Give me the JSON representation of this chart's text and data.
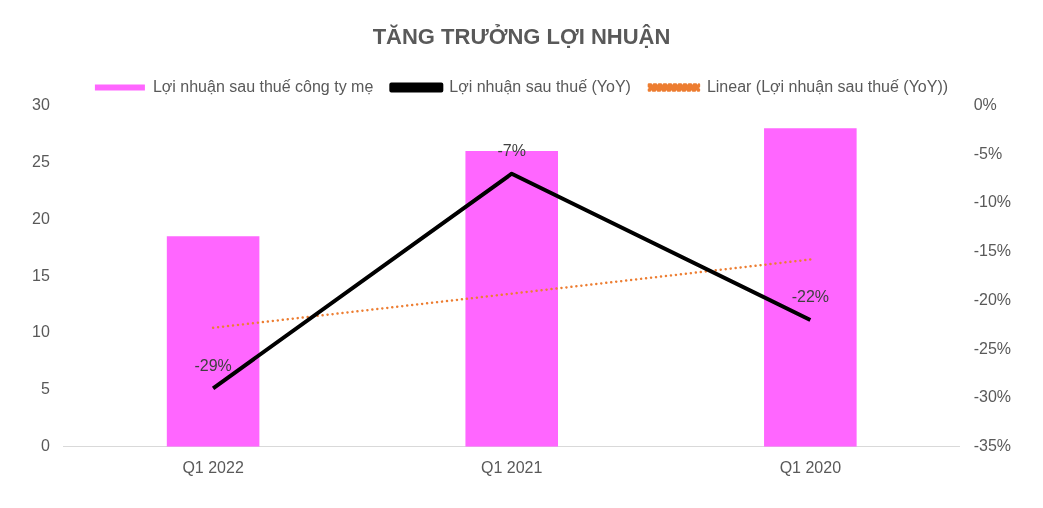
{
  "chart_data": {
    "type": "bar",
    "title": "TĂNG TRƯỞNG LỢI NHUẬN",
    "categories": [
      "Q1 2022",
      "Q1 2021",
      "Q1 2020"
    ],
    "series": [
      {
        "name": "Lợi nhuận sau thuế công ty mẹ",
        "type": "bar",
        "color": "#ff66ff",
        "values": [
          18.5,
          26,
          28
        ]
      },
      {
        "name": "Lợi nhuận sau thuế (YoY)",
        "type": "line",
        "axis": "y2",
        "color": "#000000",
        "values": [
          -29,
          -7,
          -22
        ],
        "value_labels": [
          "-29%",
          "-7%",
          "-22%"
        ],
        "line_style": "solid"
      },
      {
        "name": "Linear (Lợi nhuận sau thuế (YoY))",
        "type": "line",
        "axis": "y2",
        "color": "#ed7d31",
        "values": [
          -22.8,
          -19.3,
          -15.8
        ],
        "line_style": "dotted"
      }
    ],
    "ylim": [
      0,
      30
    ],
    "yticks": [
      0,
      5,
      10,
      15,
      20,
      25,
      30
    ],
    "y2lim": [
      -35,
      0
    ],
    "y2ticks": [
      {
        "value": -35,
        "label": "-35%"
      },
      {
        "value": -30,
        "label": "-30%"
      },
      {
        "value": -25,
        "label": "-25%"
      },
      {
        "value": -20,
        "label": "-20%"
      },
      {
        "value": -15,
        "label": "-15%"
      },
      {
        "value": -10,
        "label": "-10%"
      },
      {
        "value": -5,
        "label": "-5%"
      },
      {
        "value": 0,
        "label": "0%"
      }
    ],
    "legend": "top",
    "grid": false,
    "marker": "none"
  }
}
